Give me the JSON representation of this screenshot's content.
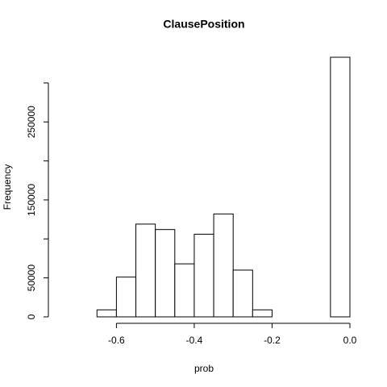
{
  "chart_data": {
    "type": "histogram",
    "title": "ClausePosition",
    "x_label": "prob",
    "y_label": "Frequency",
    "bins": [
      -0.75,
      -0.7,
      -0.65,
      -0.6,
      -0.55,
      -0.5,
      -0.45,
      -0.4,
      -0.35,
      -0.3,
      -0.25,
      -0.2,
      -0.15,
      -0.1,
      -0.05,
      0
    ],
    "values": [
      0,
      0,
      9000,
      51000,
      119000,
      112000,
      68000,
      106000,
      132000,
      60000,
      9000,
      0,
      0,
      0,
      333000
    ],
    "color": "#ffffff",
    "xlim": [
      -0.75,
      0
    ],
    "xticks": [
      -0.6,
      -0.4,
      -0.2,
      {
        "value": 0,
        "label": "0.0"
      }
    ],
    "ylim": [
      0,
      333000
    ],
    "yticks": [
      0,
      50000,
      {
        "value": 100000,
        "label": null
      },
      150000,
      {
        "value": 200000,
        "label": null
      },
      250000,
      {
        "value": 300000,
        "label": null
      }
    ]
  }
}
